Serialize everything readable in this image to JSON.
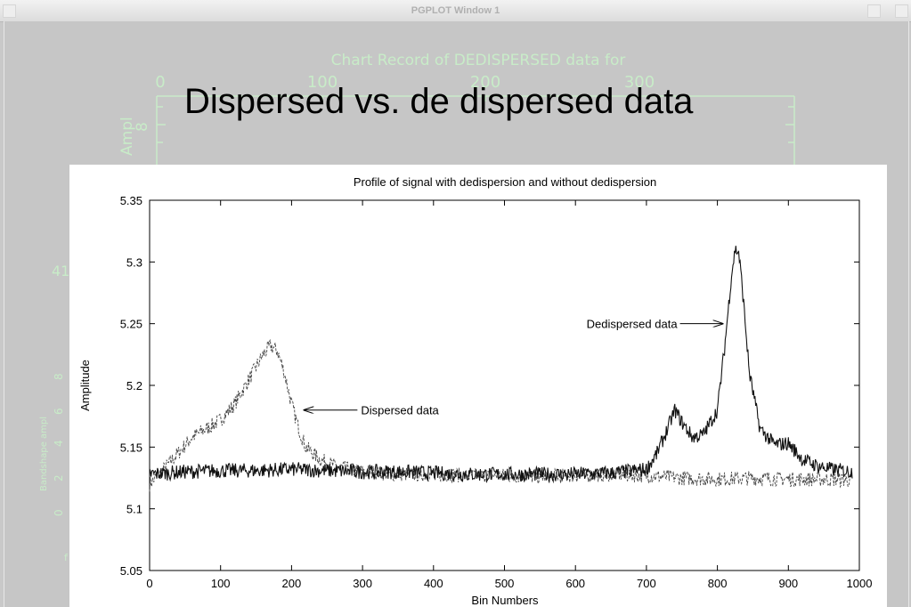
{
  "window": {
    "title": "PGPLOT Window 1"
  },
  "background_plot": {
    "title": "Chart Record of DEDISPERSED data for",
    "top_ticks": [
      "0",
      "100",
      "200",
      "300"
    ],
    "left_label_1": "Ampl",
    "left_tick_1": "8",
    "stray_label": "41",
    "lower_ylabel": "Bandshape ampl",
    "lower_ticks": [
      "8",
      "6",
      "4",
      "2",
      "0"
    ],
    "stray_letter": "f",
    "colors": {
      "text": "#c8ecc8"
    }
  },
  "slide": {
    "title": "Dispersed vs. de dispersed data"
  },
  "chart_data": {
    "type": "line",
    "title": "Profile of signal with dedispersion and without dedispersion",
    "xlabel": "Bin Numbers",
    "ylabel": "Amplitude",
    "xlim": [
      0,
      1000
    ],
    "ylim": [
      5.05,
      5.35
    ],
    "x_ticks": [
      "0",
      "100",
      "200",
      "300",
      "400",
      "500",
      "600",
      "700",
      "800",
      "900",
      "1000"
    ],
    "y_ticks": [
      "5.05",
      "5.1",
      "5.15",
      "5.2",
      "5.25",
      "5.3",
      "5.35"
    ],
    "grid": false,
    "annotations": [
      {
        "text": "Dispersed data",
        "points_to": {
          "x": 215,
          "y": 5.18
        }
      },
      {
        "text": "Dedispersed data",
        "points_to": {
          "x": 810,
          "y": 5.25
        }
      }
    ],
    "series": [
      {
        "style": "dashed",
        "x": [
          0,
          20,
          40,
          60,
          80,
          100,
          120,
          140,
          160,
          170,
          180,
          190,
          200,
          210,
          220,
          240,
          260,
          280,
          300,
          350,
          400,
          450,
          500,
          550,
          600,
          650,
          700,
          750,
          800,
          850,
          900,
          950,
          990
        ],
        "y": [
          5.12,
          5.132,
          5.145,
          5.158,
          5.165,
          5.172,
          5.185,
          5.205,
          5.225,
          5.232,
          5.228,
          5.21,
          5.185,
          5.165,
          5.15,
          5.14,
          5.135,
          5.132,
          5.13,
          5.128,
          5.128,
          5.127,
          5.127,
          5.126,
          5.127,
          5.128,
          5.127,
          5.125,
          5.124,
          5.125,
          5.124,
          5.124,
          5.123
        ]
      },
      {
        "style": "solid",
        "x": [
          0,
          50,
          100,
          150,
          200,
          250,
          300,
          350,
          400,
          450,
          500,
          550,
          600,
          650,
          700,
          715,
          730,
          740,
          750,
          765,
          780,
          800,
          810,
          820,
          825,
          830,
          835,
          845,
          860,
          880,
          900,
          920,
          940,
          960,
          990
        ],
        "y": [
          5.128,
          5.13,
          5.131,
          5.131,
          5.132,
          5.131,
          5.13,
          5.13,
          5.129,
          5.128,
          5.128,
          5.128,
          5.128,
          5.129,
          5.132,
          5.145,
          5.165,
          5.18,
          5.17,
          5.158,
          5.16,
          5.18,
          5.23,
          5.29,
          5.31,
          5.308,
          5.28,
          5.21,
          5.165,
          5.152,
          5.153,
          5.14,
          5.135,
          5.132,
          5.13
        ]
      }
    ]
  }
}
